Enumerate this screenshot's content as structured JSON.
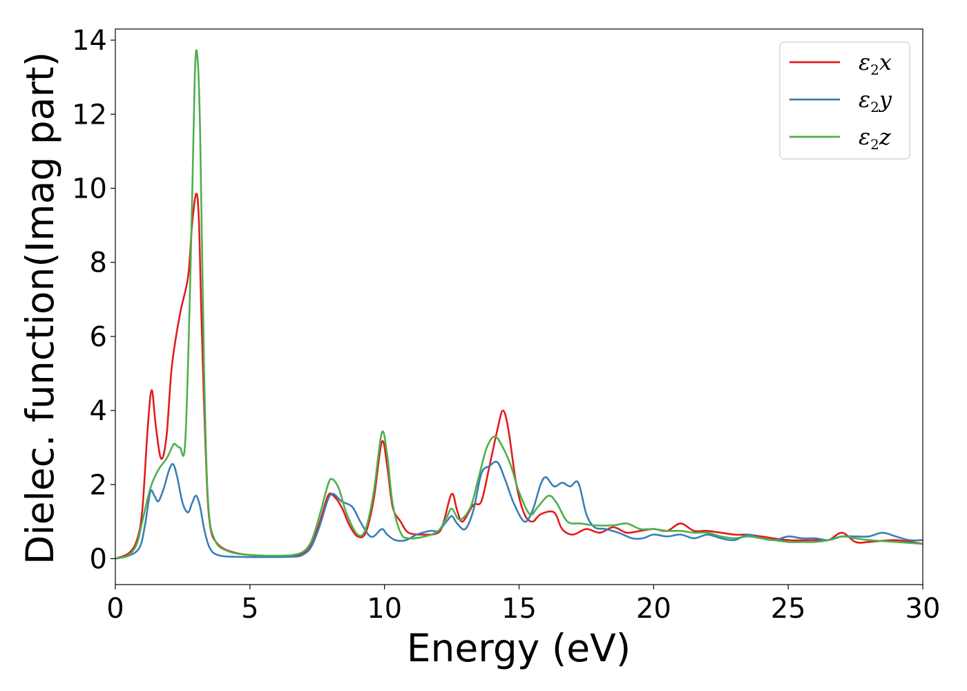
{
  "chart_data": {
    "type": "line",
    "xlabel": "Energy (eV)",
    "ylabel": "Dielec. function(Imag part)",
    "xlim": [
      0,
      30
    ],
    "ylim": [
      -0.7,
      14.3
    ],
    "xticks": [
      0,
      5,
      10,
      15,
      20,
      25,
      30
    ],
    "yticks": [
      0,
      2,
      4,
      6,
      8,
      10,
      12,
      14
    ],
    "legend_position": "top-right",
    "grid": false,
    "series": [
      {
        "name": "ε2x",
        "legend_base": "ε",
        "legend_sub": "2",
        "legend_suffix": "x",
        "color": "#e41a1c",
        "points": [
          [
            0,
            0
          ],
          [
            0.5,
            0.15
          ],
          [
            0.8,
            0.5
          ],
          [
            1.0,
            1.3
          ],
          [
            1.2,
            3.5
          ],
          [
            1.35,
            4.55
          ],
          [
            1.5,
            3.6
          ],
          [
            1.7,
            2.7
          ],
          [
            1.9,
            3.3
          ],
          [
            2.1,
            5.2
          ],
          [
            2.4,
            6.6
          ],
          [
            2.7,
            7.6
          ],
          [
            2.85,
            9.0
          ],
          [
            3.0,
            9.85
          ],
          [
            3.1,
            9.2
          ],
          [
            3.2,
            6.5
          ],
          [
            3.35,
            3.0
          ],
          [
            3.5,
            1.0
          ],
          [
            3.8,
            0.4
          ],
          [
            4.5,
            0.15
          ],
          [
            5.5,
            0.08
          ],
          [
            6.5,
            0.08
          ],
          [
            7.0,
            0.15
          ],
          [
            7.3,
            0.4
          ],
          [
            7.6,
            1.0
          ],
          [
            7.9,
            1.7
          ],
          [
            8.1,
            1.7
          ],
          [
            8.4,
            1.4
          ],
          [
            8.7,
            0.9
          ],
          [
            9.0,
            0.6
          ],
          [
            9.3,
            0.7
          ],
          [
            9.6,
            1.6
          ],
          [
            9.9,
            3.15
          ],
          [
            10.1,
            2.5
          ],
          [
            10.3,
            1.4
          ],
          [
            10.6,
            1.0
          ],
          [
            10.9,
            0.7
          ],
          [
            11.5,
            0.65
          ],
          [
            12.0,
            0.7
          ],
          [
            12.2,
            1.0
          ],
          [
            12.5,
            1.75
          ],
          [
            12.7,
            1.3
          ],
          [
            12.9,
            1.0
          ],
          [
            13.3,
            1.45
          ],
          [
            13.6,
            1.55
          ],
          [
            13.9,
            2.5
          ],
          [
            14.2,
            3.5
          ],
          [
            14.4,
            4.0
          ],
          [
            14.6,
            3.5
          ],
          [
            14.9,
            2.0
          ],
          [
            15.2,
            1.2
          ],
          [
            15.5,
            1.0
          ],
          [
            15.8,
            1.2
          ],
          [
            16.3,
            1.25
          ],
          [
            16.6,
            0.8
          ],
          [
            17.0,
            0.65
          ],
          [
            17.5,
            0.8
          ],
          [
            18.0,
            0.7
          ],
          [
            18.5,
            0.85
          ],
          [
            19.0,
            0.7
          ],
          [
            19.5,
            0.75
          ],
          [
            20.0,
            0.8
          ],
          [
            20.5,
            0.75
          ],
          [
            21.0,
            0.95
          ],
          [
            21.5,
            0.75
          ],
          [
            22.0,
            0.75
          ],
          [
            23.0,
            0.65
          ],
          [
            23.5,
            0.65
          ],
          [
            24.0,
            0.6
          ],
          [
            25.0,
            0.5
          ],
          [
            26.0,
            0.5
          ],
          [
            26.5,
            0.5
          ],
          [
            27.0,
            0.7
          ],
          [
            27.5,
            0.45
          ],
          [
            28.0,
            0.45
          ],
          [
            29.0,
            0.5
          ],
          [
            30.0,
            0.4
          ]
        ]
      },
      {
        "name": "ε2y",
        "legend_base": "ε",
        "legend_sub": "2",
        "legend_suffix": "y",
        "color": "#377eb8",
        "points": [
          [
            0,
            0
          ],
          [
            0.5,
            0.08
          ],
          [
            0.9,
            0.3
          ],
          [
            1.1,
            0.9
          ],
          [
            1.3,
            1.8
          ],
          [
            1.45,
            1.7
          ],
          [
            1.6,
            1.55
          ],
          [
            1.8,
            1.9
          ],
          [
            2.0,
            2.4
          ],
          [
            2.15,
            2.55
          ],
          [
            2.3,
            2.2
          ],
          [
            2.5,
            1.5
          ],
          [
            2.7,
            1.25
          ],
          [
            2.85,
            1.5
          ],
          [
            3.0,
            1.7
          ],
          [
            3.15,
            1.4
          ],
          [
            3.3,
            0.8
          ],
          [
            3.5,
            0.3
          ],
          [
            3.8,
            0.1
          ],
          [
            4.5,
            0.05
          ],
          [
            6.5,
            0.05
          ],
          [
            7.0,
            0.12
          ],
          [
            7.3,
            0.35
          ],
          [
            7.6,
            0.9
          ],
          [
            7.9,
            1.6
          ],
          [
            8.1,
            1.75
          ],
          [
            8.4,
            1.55
          ],
          [
            8.8,
            1.4
          ],
          [
            9.1,
            1.0
          ],
          [
            9.4,
            0.65
          ],
          [
            9.6,
            0.6
          ],
          [
            9.9,
            0.8
          ],
          [
            10.1,
            0.65
          ],
          [
            10.4,
            0.5
          ],
          [
            10.8,
            0.5
          ],
          [
            11.2,
            0.65
          ],
          [
            11.7,
            0.75
          ],
          [
            12.0,
            0.75
          ],
          [
            12.3,
            1.0
          ],
          [
            12.5,
            1.15
          ],
          [
            12.7,
            0.95
          ],
          [
            13.0,
            0.8
          ],
          [
            13.3,
            1.3
          ],
          [
            13.6,
            2.3
          ],
          [
            13.9,
            2.5
          ],
          [
            14.2,
            2.6
          ],
          [
            14.5,
            2.1
          ],
          [
            14.8,
            1.5
          ],
          [
            15.2,
            1.0
          ],
          [
            15.5,
            1.3
          ],
          [
            15.8,
            2.0
          ],
          [
            16.0,
            2.2
          ],
          [
            16.3,
            1.95
          ],
          [
            16.6,
            2.05
          ],
          [
            16.9,
            1.95
          ],
          [
            17.2,
            2.05
          ],
          [
            17.5,
            1.2
          ],
          [
            17.8,
            0.85
          ],
          [
            18.2,
            0.8
          ],
          [
            18.7,
            0.7
          ],
          [
            19.2,
            0.55
          ],
          [
            19.6,
            0.55
          ],
          [
            20.0,
            0.65
          ],
          [
            20.5,
            0.6
          ],
          [
            21.0,
            0.65
          ],
          [
            21.5,
            0.55
          ],
          [
            22.0,
            0.65
          ],
          [
            22.5,
            0.55
          ],
          [
            23.0,
            0.5
          ],
          [
            23.5,
            0.65
          ],
          [
            24.0,
            0.55
          ],
          [
            24.5,
            0.5
          ],
          [
            25.0,
            0.6
          ],
          [
            25.5,
            0.55
          ],
          [
            26.0,
            0.55
          ],
          [
            26.5,
            0.5
          ],
          [
            27.0,
            0.6
          ],
          [
            27.5,
            0.6
          ],
          [
            28.0,
            0.6
          ],
          [
            28.5,
            0.7
          ],
          [
            29.0,
            0.6
          ],
          [
            29.5,
            0.5
          ],
          [
            30.0,
            0.5
          ]
        ]
      },
      {
        "name": "ε2z",
        "legend_base": "ε",
        "legend_sub": "2",
        "legend_suffix": "z",
        "color": "#4daf4a",
        "points": [
          [
            0,
            0
          ],
          [
            0.5,
            0.1
          ],
          [
            0.8,
            0.4
          ],
          [
            1.0,
            1.0
          ],
          [
            1.3,
            1.9
          ],
          [
            1.6,
            2.4
          ],
          [
            1.9,
            2.7
          ],
          [
            2.1,
            3.0
          ],
          [
            2.2,
            3.1
          ],
          [
            2.4,
            3.0
          ],
          [
            2.6,
            3.2
          ],
          [
            2.8,
            8.0
          ],
          [
            2.95,
            13.0
          ],
          [
            3.05,
            13.55
          ],
          [
            3.15,
            11.5
          ],
          [
            3.3,
            5.0
          ],
          [
            3.45,
            1.5
          ],
          [
            3.7,
            0.5
          ],
          [
            4.2,
            0.2
          ],
          [
            5.0,
            0.1
          ],
          [
            6.0,
            0.08
          ],
          [
            6.6,
            0.1
          ],
          [
            7.0,
            0.2
          ],
          [
            7.3,
            0.5
          ],
          [
            7.6,
            1.2
          ],
          [
            7.9,
            2.0
          ],
          [
            8.05,
            2.15
          ],
          [
            8.3,
            1.9
          ],
          [
            8.6,
            1.2
          ],
          [
            9.0,
            0.65
          ],
          [
            9.3,
            0.8
          ],
          [
            9.6,
            1.8
          ],
          [
            9.9,
            3.4
          ],
          [
            10.1,
            2.8
          ],
          [
            10.3,
            1.5
          ],
          [
            10.6,
            0.7
          ],
          [
            10.9,
            0.55
          ],
          [
            11.5,
            0.6
          ],
          [
            12.0,
            0.75
          ],
          [
            12.3,
            1.1
          ],
          [
            12.5,
            1.35
          ],
          [
            12.8,
            1.05
          ],
          [
            13.2,
            1.4
          ],
          [
            13.5,
            2.2
          ],
          [
            13.8,
            3.0
          ],
          [
            14.1,
            3.3
          ],
          [
            14.4,
            3.0
          ],
          [
            14.7,
            2.5
          ],
          [
            15.0,
            1.8
          ],
          [
            15.4,
            1.2
          ],
          [
            15.7,
            1.4
          ],
          [
            16.1,
            1.7
          ],
          [
            16.4,
            1.5
          ],
          [
            16.8,
            1.0
          ],
          [
            17.3,
            0.95
          ],
          [
            17.8,
            0.9
          ],
          [
            18.5,
            0.9
          ],
          [
            19.0,
            0.95
          ],
          [
            19.5,
            0.8
          ],
          [
            20.0,
            0.8
          ],
          [
            20.5,
            0.75
          ],
          [
            21.0,
            0.75
          ],
          [
            21.5,
            0.7
          ],
          [
            22.0,
            0.7
          ],
          [
            22.5,
            0.6
          ],
          [
            23.0,
            0.55
          ],
          [
            23.5,
            0.6
          ],
          [
            24.0,
            0.55
          ],
          [
            25.0,
            0.45
          ],
          [
            25.5,
            0.45
          ],
          [
            26.0,
            0.45
          ],
          [
            26.5,
            0.5
          ],
          [
            27.0,
            0.6
          ],
          [
            27.5,
            0.55
          ],
          [
            28.0,
            0.5
          ],
          [
            29.0,
            0.45
          ],
          [
            30.0,
            0.4
          ]
        ]
      }
    ]
  }
}
